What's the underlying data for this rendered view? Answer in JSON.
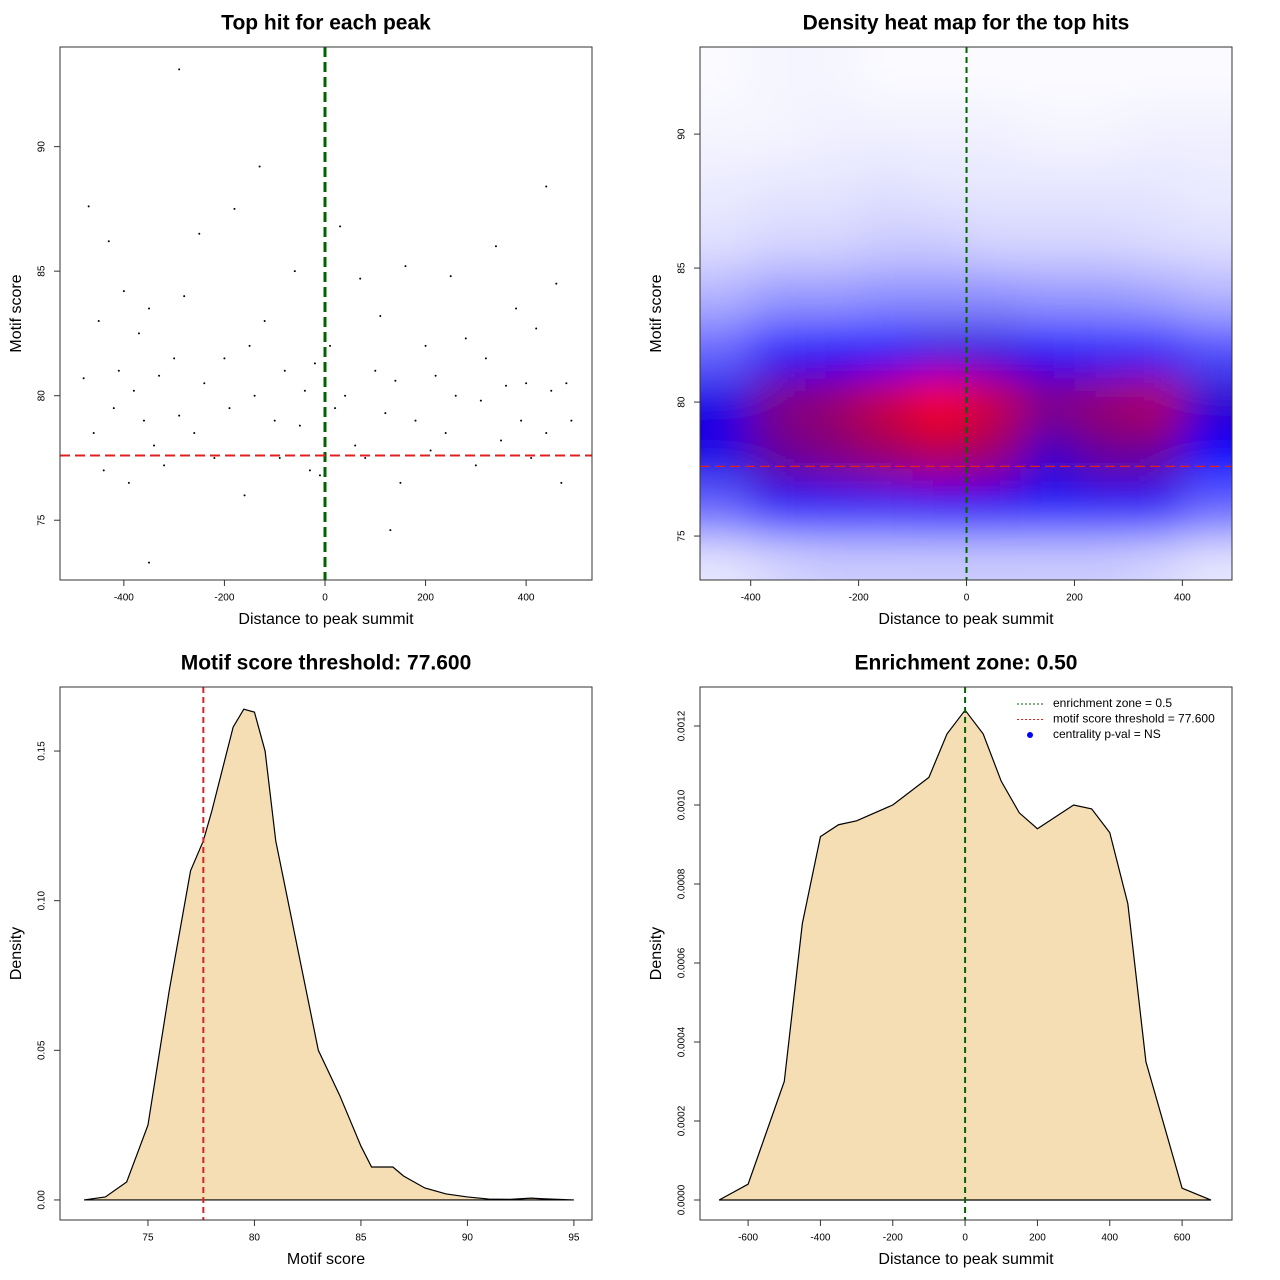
{
  "chart_data": [
    {
      "type": "scatter",
      "title": "Top hit for each peak",
      "x_label": "Distance to peak summit",
      "y_label": "Motif score",
      "xlim": [
        -527,
        531
      ],
      "ylim": [
        72.6,
        94.0
      ],
      "xticks": [
        -400,
        -200,
        0,
        200,
        400
      ],
      "yticks": [
        75,
        80,
        85,
        90
      ],
      "color": "#000000",
      "vline": 0,
      "vline_color": "#006400",
      "hline": 77.6,
      "hline_color": "#e02020",
      "x": [
        -480,
        -470,
        -460,
        -450,
        -440,
        -430,
        -420,
        -410,
        -400,
        -390,
        -380,
        -370,
        -360,
        -350,
        -340,
        -330,
        -320,
        -300,
        -290,
        -280,
        -260,
        -250,
        -240,
        -220,
        -200,
        -190,
        -180,
        -160,
        -150,
        -140,
        -120,
        -100,
        -90,
        -80,
        -60,
        -50,
        -40,
        -30,
        -20,
        -10,
        10,
        20,
        30,
        40,
        60,
        70,
        80,
        100,
        110,
        120,
        140,
        150,
        160,
        180,
        200,
        210,
        220,
        240,
        250,
        260,
        280,
        300,
        310,
        320,
        340,
        350,
        360,
        380,
        390,
        400,
        410,
        420,
        440,
        450,
        460,
        470,
        480,
        490,
        -290,
        -130,
        440,
        -350,
        130
      ],
      "y": [
        80.7,
        87.6,
        78.5,
        83,
        77,
        86.2,
        79.5,
        81,
        84.2,
        76.5,
        80.2,
        82.5,
        79,
        83.5,
        78,
        80.8,
        77.2,
        81.5,
        79.2,
        84,
        78.5,
        86.5,
        80.5,
        77.5,
        81.5,
        79.5,
        87.5,
        76,
        82,
        80,
        83,
        79,
        77.5,
        81,
        85,
        78.8,
        80.2,
        77,
        81.3,
        76.8,
        82,
        79.5,
        86.8,
        80,
        78,
        84.7,
        77.5,
        81,
        83.2,
        79.3,
        80.6,
        76.5,
        85.2,
        79,
        82,
        77.8,
        80.8,
        78.5,
        84.8,
        80,
        82.3,
        77.2,
        79.8,
        81.5,
        86,
        78.2,
        80.4,
        83.5,
        79,
        80.5,
        77.5,
        82.7,
        78.5,
        80.2,
        84.5,
        76.5,
        80.5,
        79,
        93.1,
        89.2,
        88.4,
        73.3,
        74.6
      ]
    },
    {
      "type": "heatmap",
      "title": "Density heat map for the top hits",
      "x_label": "Distance to peak summit",
      "y_label": "Motif score",
      "xlim": [
        -494,
        492
      ],
      "ylim": [
        73.36,
        93.25
      ],
      "xticks": [
        -400,
        -200,
        0,
        200,
        400
      ],
      "yticks": [
        75,
        80,
        85,
        90
      ],
      "colors": [
        "#ffffff",
        "#0000ff",
        "#ff0000"
      ],
      "vline": 0,
      "vline_color": "#006400",
      "hline": 77.6,
      "hline_color": "#e02020",
      "x": [
        -450,
        -350,
        -250,
        -150,
        -50,
        50,
        150,
        250,
        350,
        450
      ],
      "y": [
        74,
        76,
        78,
        80,
        82,
        84,
        86,
        88,
        90,
        92
      ],
      "z": [
        [
          0.05,
          0.08,
          0.1,
          0.1,
          0.1,
          0.1,
          0.1,
          0.1,
          0.08,
          0.05
        ],
        [
          0.3,
          0.45,
          0.45,
          0.45,
          0.5,
          0.5,
          0.45,
          0.45,
          0.45,
          0.3
        ],
        [
          0.55,
          0.7,
          0.75,
          0.8,
          0.85,
          0.8,
          0.6,
          0.7,
          0.7,
          0.5
        ],
        [
          0.55,
          0.75,
          0.8,
          0.9,
          1.0,
          0.9,
          0.75,
          0.8,
          0.85,
          0.6
        ],
        [
          0.3,
          0.45,
          0.5,
          0.5,
          0.55,
          0.55,
          0.5,
          0.45,
          0.45,
          0.35
        ],
        [
          0.15,
          0.2,
          0.2,
          0.22,
          0.22,
          0.22,
          0.2,
          0.2,
          0.18,
          0.15
        ],
        [
          0.06,
          0.08,
          0.08,
          0.1,
          0.1,
          0.08,
          0.08,
          0.08,
          0.07,
          0.06
        ],
        [
          0.04,
          0.05,
          0.05,
          0.06,
          0.05,
          0.05,
          0.05,
          0.05,
          0.05,
          0.04
        ],
        [
          0.02,
          0.02,
          0.03,
          0.03,
          0.03,
          0.03,
          0.02,
          0.02,
          0.03,
          0.03
        ],
        [
          0.01,
          0.02,
          0.02,
          0.01,
          0.01,
          0.01,
          0.01,
          0.01,
          0.01,
          0.01
        ]
      ]
    },
    {
      "type": "area",
      "title": "Motif score threshold: 77.600",
      "x_label": "Motif score",
      "y_label": "Density",
      "xlim": [
        70.87,
        95.85
      ],
      "ylim": [
        -0.0067,
        0.1714
      ],
      "xticks": [
        75,
        80,
        85,
        90,
        95
      ],
      "yticks": [
        {
          "value": 0,
          "label": "0.00"
        },
        {
          "value": 0.05,
          "label": "0.05"
        },
        {
          "value": 0.1,
          "label": "0.10"
        },
        {
          "value": 0.15,
          "label": "0.15"
        }
      ],
      "color": "#f5deb3",
      "vline": 77.6,
      "vline_color": "#e02020",
      "x": [
        72,
        73,
        74,
        75,
        76,
        77,
        77.6,
        78,
        79,
        79.5,
        80,
        80.5,
        81,
        82,
        83,
        84,
        85,
        85.5,
        86,
        86.5,
        87,
        88,
        89,
        90,
        91,
        92,
        93,
        93.5,
        95
      ],
      "y": [
        0,
        0.001,
        0.006,
        0.025,
        0.07,
        0.11,
        0.12,
        0.13,
        0.158,
        0.164,
        0.163,
        0.15,
        0.12,
        0.085,
        0.05,
        0.035,
        0.018,
        0.011,
        0.011,
        0.011,
        0.008,
        0.004,
        0.002,
        0.001,
        0.0003,
        0.0002,
        0.0006,
        0.0004,
        0
      ]
    },
    {
      "type": "area",
      "title": "Enrichment zone: 0.50",
      "x_label": "Distance to peak summit",
      "y_label": "Density",
      "xlim": [
        -733,
        738
      ],
      "ylim": [
        -5.06e-05,
        0.0012987
      ],
      "xticks": [
        -600,
        -400,
        -200,
        0,
        200,
        400,
        600
      ],
      "yticks": [
        {
          "value": 0,
          "label": "0.0000"
        },
        {
          "value": 0.0002,
          "label": "0.0002"
        },
        {
          "value": 0.0004,
          "label": "0.0004"
        },
        {
          "value": 0.0006,
          "label": "0.0006"
        },
        {
          "value": 0.0008,
          "label": "0.0008"
        },
        {
          "value": 0.001,
          "label": "0.0010"
        },
        {
          "value": 0.0012,
          "label": "0.0012"
        }
      ],
      "color": "#f5deb3",
      "vline": 0,
      "vline_color": "#006400",
      "legend": [
        {
          "label": "enrichment zone = 0.5",
          "color": "#006400",
          "marker": "line"
        },
        {
          "label": "motif score threshold = 77.600",
          "color": "#e02020",
          "marker": "line"
        },
        {
          "label": "centrality p-val = NS",
          "color": "#0000ff",
          "marker": "dot"
        }
      ],
      "x": [
        -680,
        -600,
        -500,
        -450,
        -400,
        -350,
        -300,
        -200,
        -100,
        -50,
        0,
        50,
        100,
        150,
        200,
        250,
        300,
        350,
        400,
        450,
        500,
        600,
        680
      ],
      "y": [
        0,
        4e-05,
        0.0003,
        0.0007,
        0.00092,
        0.00095,
        0.00096,
        0.001,
        0.00107,
        0.00118,
        0.00124,
        0.00118,
        0.00106,
        0.00098,
        0.00094,
        0.00097,
        0.001,
        0.00099,
        0.00093,
        0.00075,
        0.00035,
        3e-05,
        0
      ]
    }
  ]
}
